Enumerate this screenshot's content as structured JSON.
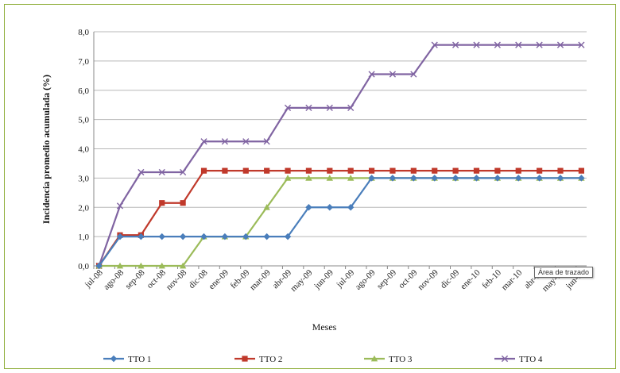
{
  "chart_data": {
    "type": "line",
    "title": "",
    "xlabel": "Meses",
    "ylabel": "Incidencia promedio acumulada (%)",
    "ylim": [
      0,
      8
    ],
    "yticks": [
      "0,0",
      "1,0",
      "2,0",
      "3,0",
      "4,0",
      "5,0",
      "6,0",
      "7,0",
      "8,0"
    ],
    "grid": "horizontal",
    "legend_position": "bottom",
    "x": [
      "jul-08",
      "ago-08",
      "sep-08",
      "oct-08",
      "nov-08",
      "dic-08",
      "ene-09",
      "feb-09",
      "mar-09",
      "abr-09",
      "may-09",
      "jun-09",
      "jul-09",
      "ago-09",
      "sep-09",
      "oct-09",
      "nov-09",
      "dic-09",
      "ene-10",
      "feb-10",
      "mar-10",
      "abr-10",
      "may-10",
      "jun-10"
    ],
    "series": [
      {
        "name": "TTO 1",
        "color": "#4a7ebb",
        "marker": "diamond",
        "values": [
          0,
          1.0,
          1.0,
          1.0,
          1.0,
          1.0,
          1.0,
          1.0,
          1.0,
          1.0,
          2.0,
          2.0,
          2.0,
          3.0,
          3.0,
          3.0,
          3.0,
          3.0,
          3.0,
          3.0,
          3.0,
          3.0,
          3.0,
          3.0
        ]
      },
      {
        "name": "TTO 2",
        "color": "#c0392b",
        "marker": "square",
        "values": [
          0,
          1.05,
          1.05,
          2.15,
          2.15,
          3.25,
          3.25,
          3.25,
          3.25,
          3.25,
          3.25,
          3.25,
          3.25,
          3.25,
          3.25,
          3.25,
          3.25,
          3.25,
          3.25,
          3.25,
          3.25,
          3.25,
          3.25,
          3.25
        ]
      },
      {
        "name": "TTO 3",
        "color": "#9bbb59",
        "marker": "triangle",
        "values": [
          0,
          0,
          0,
          0,
          0,
          1.0,
          1.0,
          1.0,
          2.0,
          3.0,
          3.0,
          3.0,
          3.0,
          3.0,
          3.0,
          3.0,
          3.0,
          3.0,
          3.0,
          3.0,
          3.0,
          3.0,
          3.0,
          3.0
        ]
      },
      {
        "name": "TTO 4",
        "color": "#8064a2",
        "marker": "x",
        "values": [
          0,
          2.05,
          3.2,
          3.2,
          3.2,
          4.25,
          4.25,
          4.25,
          4.25,
          5.4,
          5.4,
          5.4,
          5.4,
          6.55,
          6.55,
          6.55,
          7.55,
          7.55,
          7.55,
          7.55,
          7.55,
          7.55,
          7.55,
          7.55
        ]
      }
    ]
  },
  "tooltip": "Área de trazado"
}
